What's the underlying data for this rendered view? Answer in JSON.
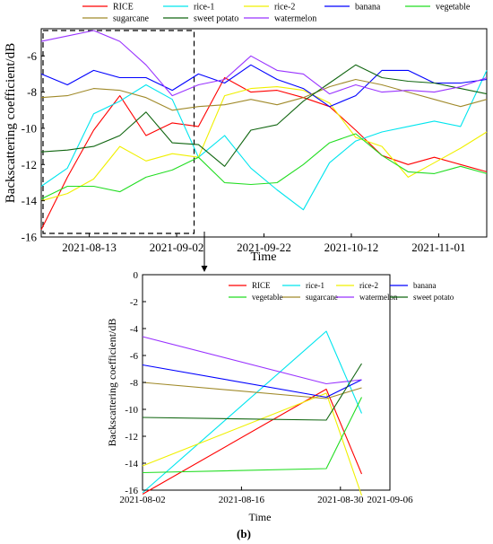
{
  "figure_label": "(b)",
  "colors": {
    "RICE": "#ff0000",
    "rice-1": "#00e5ee",
    "rice-2": "#f0f000",
    "banana": "#0000ff",
    "vegetable": "#22dd22",
    "sugarcane": "#a08a2a",
    "sweet potato": "#116611",
    "watermelon": "#9933ff"
  },
  "chart_data": [
    {
      "type": "line",
      "xlabel": "Time",
      "ylabel": "Backscattering coefficient/dB",
      "xlim": [
        "2021-08-02",
        "2021-11-12"
      ],
      "ylim": [
        -16,
        -4.5
      ],
      "yticks": [
        -16,
        -14,
        -12,
        -10,
        -8,
        -6
      ],
      "xticks": [
        "2021-08-13",
        "2021-09-02",
        "2021-09-22",
        "2021-10-12",
        "2021-11-01"
      ],
      "grid": false,
      "legend": "top",
      "legend_entries": [
        "RICE",
        "rice-1",
        "rice-2",
        "banana",
        "vegetable",
        "sugarcane",
        "sweet potato",
        "watermelon"
      ],
      "highlight_box": {
        "x_range": [
          "2021-08-02",
          "2021-09-06"
        ],
        "y_range": [
          -15.8,
          -4.6
        ]
      },
      "x": [
        "2021-08-02",
        "2021-08-08",
        "2021-08-14",
        "2021-08-20",
        "2021-08-26",
        "2021-09-01",
        "2021-09-07",
        "2021-09-13",
        "2021-09-19",
        "2021-09-25",
        "2021-10-01",
        "2021-10-07",
        "2021-10-13",
        "2021-10-19",
        "2021-10-25",
        "2021-10-31",
        "2021-11-06",
        "2021-11-12"
      ],
      "series": [
        {
          "name": "RICE",
          "values": [
            -15.6,
            -12.7,
            -10.1,
            -8.2,
            -10.4,
            -9.7,
            -9.9,
            -7.2,
            -8.0,
            -7.9,
            -8.3,
            -8.8,
            -10.1,
            -11.5,
            -12.0,
            -11.6,
            -12.0,
            -12.4
          ]
        },
        {
          "name": "rice-1",
          "values": [
            -13.2,
            -12.2,
            -9.2,
            -8.5,
            -7.6,
            -8.4,
            -11.6,
            -10.4,
            -12.2,
            -13.4,
            -14.5,
            -11.9,
            -10.7,
            -10.2,
            -9.9,
            -9.6,
            -9.9,
            -6.8
          ]
        },
        {
          "name": "rice-2",
          "values": [
            -14.0,
            -13.6,
            -12.8,
            -11.0,
            -11.8,
            -11.4,
            -11.6,
            -8.2,
            -7.8,
            -7.7,
            -7.9,
            -8.6,
            -10.5,
            -11.0,
            -12.7,
            -11.9,
            -11.1,
            -10.2
          ]
        },
        {
          "name": "banana",
          "values": [
            -7.0,
            -7.6,
            -6.8,
            -7.2,
            -7.2,
            -7.9,
            -7.0,
            -7.5,
            -6.5,
            -7.3,
            -7.8,
            -8.8,
            -8.2,
            -6.8,
            -6.8,
            -7.5,
            -7.5,
            -7.3
          ]
        },
        {
          "name": "vegetable",
          "values": [
            -13.9,
            -13.2,
            -13.2,
            -13.5,
            -12.7,
            -12.3,
            -11.6,
            -13.0,
            -13.1,
            -13.0,
            -12.0,
            -10.8,
            -10.3,
            -11.5,
            -12.4,
            -12.5,
            -12.1,
            -12.5
          ]
        },
        {
          "name": "sugarcane",
          "values": [
            -8.3,
            -8.2,
            -7.8,
            -7.9,
            -8.3,
            -9.0,
            -8.8,
            -8.7,
            -8.4,
            -8.7,
            -8.3,
            -7.7,
            -7.3,
            -7.6,
            -8.0,
            -8.4,
            -8.8,
            -8.4
          ]
        },
        {
          "name": "sweet potato",
          "values": [
            -11.3,
            -11.2,
            -11.0,
            -10.4,
            -9.1,
            -10.8,
            -10.9,
            -12.1,
            -10.1,
            -9.8,
            -8.5,
            -7.5,
            -6.5,
            -7.2,
            -7.4,
            -7.5,
            -7.8,
            -8.1
          ]
        },
        {
          "name": "watermelon",
          "values": [
            -5.2,
            -4.9,
            -4.6,
            -5.2,
            -6.5,
            -8.2,
            -7.6,
            -7.3,
            -6.0,
            -6.8,
            -7.0,
            -8.1,
            -7.6,
            -8.0,
            -7.9,
            -8.0,
            -7.7,
            -7.2
          ]
        }
      ]
    },
    {
      "type": "line",
      "xlabel": "Time",
      "ylabel": "Backscattering coefficient/dB",
      "xlim": [
        "2021-08-02",
        "2021-09-06"
      ],
      "ylim": [
        -16,
        0
      ],
      "yticks": [
        -16,
        -14,
        -12,
        -10,
        -8,
        -6,
        -4,
        -2,
        0
      ],
      "xticks": [
        "2021-08-02",
        "2021-08-16",
        "2021-08-30",
        "2021-09-06"
      ],
      "grid": false,
      "legend": "top",
      "legend_entries": [
        "RICE",
        "rice-1",
        "rice-2",
        "banana",
        "vegetable",
        "sugarcane",
        "watermelon",
        "sweet potato"
      ],
      "x": [
        "2021-08-02",
        "2021-08-28",
        "2021-09-02"
      ],
      "series": [
        {
          "name": "RICE",
          "values": [
            -16.3,
            -8.5,
            -14.8
          ]
        },
        {
          "name": "rice-1",
          "values": [
            -16.2,
            -4.2,
            -10.3
          ]
        },
        {
          "name": "rice-2",
          "values": [
            -14.2,
            -8.8,
            -16.4
          ]
        },
        {
          "name": "banana",
          "values": [
            -6.7,
            -9.1,
            -7.8
          ]
        },
        {
          "name": "vegetable",
          "values": [
            -14.7,
            -14.4,
            -9.1
          ]
        },
        {
          "name": "sugarcane",
          "values": [
            -8.0,
            -9.2,
            -8.4
          ]
        },
        {
          "name": "watermelon",
          "values": [
            -4.6,
            -8.1,
            -7.8
          ]
        },
        {
          "name": "sweet potato",
          "values": [
            -10.6,
            -10.8,
            -6.6
          ]
        }
      ]
    }
  ]
}
